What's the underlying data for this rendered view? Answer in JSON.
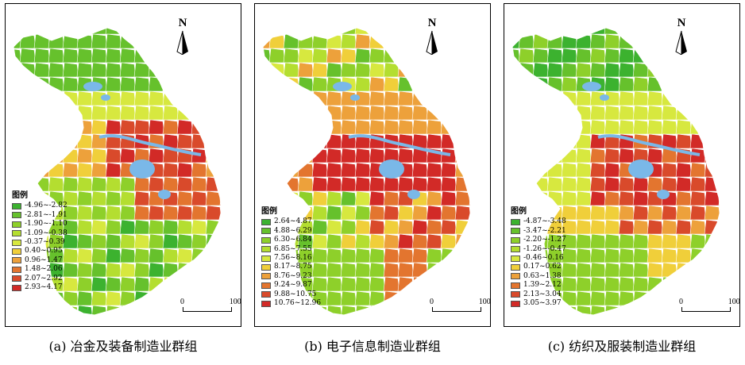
{
  "north_label": "N",
  "legend_title": "图例",
  "scale": {
    "zero": "0",
    "dist": "100 km"
  },
  "panels": [
    {
      "caption": "(a) 冶金及装备制造业群组",
      "legend": [
        {
          "label": "-4.96~-2.82",
          "color": "#3cb22f"
        },
        {
          "label": "-2.81~-1.91",
          "color": "#66c12c"
        },
        {
          "label": "-1.90~-1.10",
          "color": "#8ed02a"
        },
        {
          "label": "-1.09~-0.38",
          "color": "#b4de30"
        },
        {
          "label": "-0.37~0.39",
          "color": "#d7e83f"
        },
        {
          "label": "0.40~0.95",
          "color": "#f0cf3a"
        },
        {
          "label": "0.96~1.47",
          "color": "#eda13b"
        },
        {
          "label": "1.48~2.06",
          "color": "#e3752f"
        },
        {
          "label": "2.07~2.92",
          "color": "#d94a2b"
        },
        {
          "label": "2.93~4.17",
          "color": "#d22a27"
        }
      ]
    },
    {
      "caption": "(b) 电子信息制造业群组",
      "legend": [
        {
          "label": "2.64~4.87",
          "color": "#3cb22f"
        },
        {
          "label": "4.88~6.29",
          "color": "#66c12c"
        },
        {
          "label": "6.30~6.84",
          "color": "#8ed02a"
        },
        {
          "label": "6.85~7.55",
          "color": "#b4de30"
        },
        {
          "label": "7.56~8.16",
          "color": "#d7e83f"
        },
        {
          "label": "8.17~8.75",
          "color": "#f0cf3a"
        },
        {
          "label": "8.76~9.23",
          "color": "#eda13b"
        },
        {
          "label": "9.24~9.87",
          "color": "#e3752f"
        },
        {
          "label": "9.88~10.75",
          "color": "#d94a2b"
        },
        {
          "label": "10.76~12.96",
          "color": "#d22a27"
        }
      ]
    },
    {
      "caption": "(c) 纺织及服装制造业群组",
      "legend": [
        {
          "label": "-4.87~-3.48",
          "color": "#3cb22f"
        },
        {
          "label": "-3.47~-2.21",
          "color": "#66c12c"
        },
        {
          "label": "-2.20~-1.27",
          "color": "#8ed02a"
        },
        {
          "label": "-1.26~-0.47",
          "color": "#b4de30"
        },
        {
          "label": "-0.46~0.16",
          "color": "#d7e83f"
        },
        {
          "label": "0.17~0.62",
          "color": "#f0cf3a"
        },
        {
          "label": "0.63~1.38",
          "color": "#eda13b"
        },
        {
          "label": "1.39~2.12",
          "color": "#e3752f"
        },
        {
          "label": "2.13~3.04",
          "color": "#d94a2b"
        },
        {
          "label": "3.05~3.97",
          "color": "#d22a27"
        }
      ]
    }
  ],
  "water_color": "#7ab8e8"
}
